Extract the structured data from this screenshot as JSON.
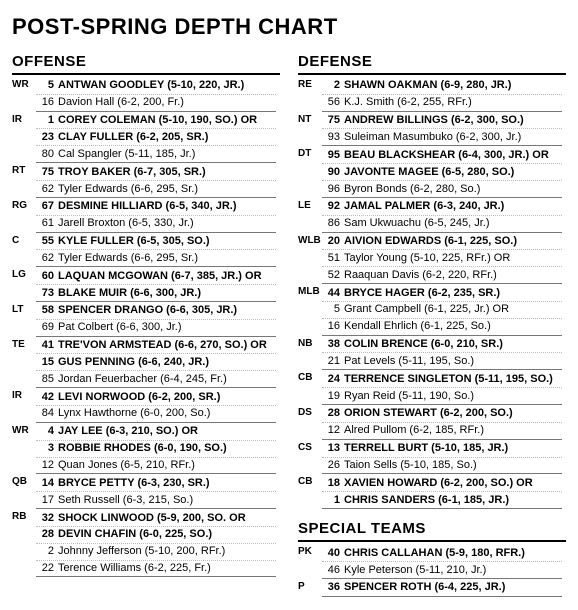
{
  "title": "POST-SPRING DEPTH CHART",
  "sections": {
    "offense": {
      "label": "OFFENSE",
      "positions": [
        {
          "pos": "WR",
          "players": [
            {
              "num": "5",
              "name": "ANTWAN GOODLEY (5-10, 220, JR.)",
              "b": true
            },
            {
              "num": "16",
              "name": "Davion Hall (6-2, 200, Fr.)"
            }
          ]
        },
        {
          "pos": "IR",
          "players": [
            {
              "num": "1",
              "name": "COREY COLEMAN (5-10, 190, SO.) OR",
              "b": true
            },
            {
              "num": "23",
              "name": "CLAY FULLER (6-2, 205, SR.)",
              "b": true
            },
            {
              "num": "80",
              "name": "Cal Spangler (5-11, 185, Jr.)"
            }
          ]
        },
        {
          "pos": "RT",
          "players": [
            {
              "num": "75",
              "name": "TROY BAKER (6-7, 305, SR.)",
              "b": true
            },
            {
              "num": "62",
              "name": "Tyler Edwards (6-6, 295, Sr.)"
            }
          ]
        },
        {
          "pos": "RG",
          "players": [
            {
              "num": "67",
              "name": "DESMINE HILLIARD (6-5, 340, JR.)",
              "b": true
            },
            {
              "num": "61",
              "name": "Jarell Broxton (6-5, 330, Jr.)"
            }
          ]
        },
        {
          "pos": "C",
          "players": [
            {
              "num": "55",
              "name": "KYLE FULLER (6-5, 305, SO.)",
              "b": true
            },
            {
              "num": "62",
              "name": "Tyler Edwards (6-6, 295, Sr.)"
            }
          ]
        },
        {
          "pos": "LG",
          "players": [
            {
              "num": "60",
              "name": "LAQUAN MCGOWAN (6-7, 385, JR.) OR",
              "b": true
            },
            {
              "num": "73",
              "name": "BLAKE MUIR (6-6, 300, JR.)",
              "b": true
            }
          ]
        },
        {
          "pos": "LT",
          "players": [
            {
              "num": "58",
              "name": "SPENCER DRANGO (6-6, 305, JR.)",
              "b": true
            },
            {
              "num": "69",
              "name": "Pat Colbert (6-6, 300, Jr.)"
            }
          ]
        },
        {
          "pos": "TE",
          "players": [
            {
              "num": "41",
              "name": "TRE'VON ARMSTEAD (6-6, 270, SO.) OR",
              "b": true
            },
            {
              "num": "15",
              "name": "GUS PENNING (6-6, 240, JR.)",
              "b": true
            },
            {
              "num": "85",
              "name": "Jordan Feuerbacher (6-4, 245, Fr.)"
            }
          ]
        },
        {
          "pos": "IR",
          "players": [
            {
              "num": "42",
              "name": "LEVI NORWOOD (6-2, 200, SR.)",
              "b": true
            },
            {
              "num": "84",
              "name": "Lynx Hawthorne (6-0, 200, So.)"
            }
          ]
        },
        {
          "pos": "WR",
          "players": [
            {
              "num": "4",
              "name": "JAY LEE (6-3, 210, SO.) OR",
              "b": true
            },
            {
              "num": "3",
              "name": "ROBBIE RHODES (6-0, 190, SO.)",
              "b": true
            },
            {
              "num": "12",
              "name": "Quan Jones (6-5, 210, RFr.)"
            }
          ]
        },
        {
          "pos": "QB",
          "players": [
            {
              "num": "14",
              "name": "BRYCE PETTY (6-3, 230, SR.)",
              "b": true
            },
            {
              "num": "17",
              "name": "Seth Russell (6-3, 215, So.)"
            }
          ]
        },
        {
          "pos": "RB",
          "players": [
            {
              "num": "32",
              "name": "SHOCK LINWOOD (5-9, 200, SO. OR",
              "b": true
            },
            {
              "num": "28",
              "name": "DEVIN CHAFIN (6-0, 225, SO.)",
              "b": true
            },
            {
              "num": "2",
              "name": "Johnny Jefferson (5-10, 200, RFr.)"
            },
            {
              "num": "22",
              "name": "Terence Williams (6-2, 225, Fr.)"
            }
          ]
        }
      ]
    },
    "defense": {
      "label": "DEFENSE",
      "positions": [
        {
          "pos": "RE",
          "players": [
            {
              "num": "2",
              "name": "SHAWN OAKMAN (6-9, 280, JR.)",
              "b": true
            },
            {
              "num": "56",
              "name": "K.J. Smith (6-2, 255, RFr.)"
            }
          ]
        },
        {
          "pos": "NT",
          "players": [
            {
              "num": "75",
              "name": "ANDREW BILLINGS (6-2, 300, SO.)",
              "b": true
            },
            {
              "num": "93",
              "name": "Suleiman Masumbuko (6-2, 300, Jr.)"
            }
          ]
        },
        {
          "pos": "DT",
          "players": [
            {
              "num": "95",
              "name": "BEAU BLACKSHEAR (6-4, 300, JR.) OR",
              "b": true
            },
            {
              "num": "90",
              "name": "JAVONTE MAGEE (6-5, 280, SO.)",
              "b": true
            },
            {
              "num": "96",
              "name": "Byron Bonds (6-2, 280, So.)"
            }
          ]
        },
        {
          "pos": "LE",
          "players": [
            {
              "num": "92",
              "name": "JAMAL PALMER (6-3, 240, JR.)",
              "b": true
            },
            {
              "num": "86",
              "name": "Sam Ukwuachu (6-5, 245, Jr.)"
            }
          ]
        },
        {
          "pos": "WLB",
          "players": [
            {
              "num": "20",
              "name": "AIVION EDWARDS (6-1, 225, SO.)",
              "b": true
            },
            {
              "num": "51",
              "name": "Taylor Young (5-10, 225, RFr.) OR"
            },
            {
              "num": "52",
              "name": "Raaquan Davis (6-2, 220, RFr.)"
            }
          ]
        },
        {
          "pos": "MLB",
          "players": [
            {
              "num": "44",
              "name": "BRYCE HAGER (6-2, 235, SR.)",
              "b": true
            },
            {
              "num": "5",
              "name": "Grant Campbell (6-1, 225, Jr.) OR"
            },
            {
              "num": "16",
              "name": "Kendall Ehrlich (6-1, 225, So.)"
            }
          ]
        },
        {
          "pos": "NB",
          "players": [
            {
              "num": "38",
              "name": "COLIN BRENCE (6-0, 210, SR.)",
              "b": true
            },
            {
              "num": "21",
              "name": "Pat Levels (5-11, 195, So.)"
            }
          ]
        },
        {
          "pos": "CB",
          "players": [
            {
              "num": "24",
              "name": "TERRENCE SINGLETON (5-11, 195, SO.)",
              "b": true
            },
            {
              "num": "19",
              "name": "Ryan Reid (5-11, 190, So.)"
            }
          ]
        },
        {
          "pos": "DS",
          "players": [
            {
              "num": "28",
              "name": "ORION STEWART (6-2, 200, SO.)",
              "b": true
            },
            {
              "num": "12",
              "name": "Alred Pullom (6-2, 185, RFr.)"
            }
          ]
        },
        {
          "pos": "CS",
          "players": [
            {
              "num": "13",
              "name": "TERRELL BURT (5-10, 185, JR.)",
              "b": true
            },
            {
              "num": "26",
              "name": "Taion Sells (5-10, 185, So.)"
            }
          ]
        },
        {
          "pos": "CB",
          "players": [
            {
              "num": "18",
              "name": "XAVIEN HOWARD (6-2, 200, SO.) OR",
              "b": true
            },
            {
              "num": "1",
              "name": "CHRIS SANDERS (6-1, 185, JR.)",
              "b": true
            }
          ]
        }
      ]
    },
    "special": {
      "label": "SPECIAL TEAMS",
      "positions": [
        {
          "pos": "PK",
          "players": [
            {
              "num": "40",
              "name": "CHRIS CALLAHAN (5-9, 180, RFR.)",
              "b": true
            },
            {
              "num": "46",
              "name": "Kyle Peterson (5-11, 210, Jr.)"
            }
          ]
        },
        {
          "pos": "P",
          "players": [
            {
              "num": "36",
              "name": "SPENCER ROTH (6-4, 225, JR.)",
              "b": true
            }
          ]
        }
      ]
    }
  }
}
